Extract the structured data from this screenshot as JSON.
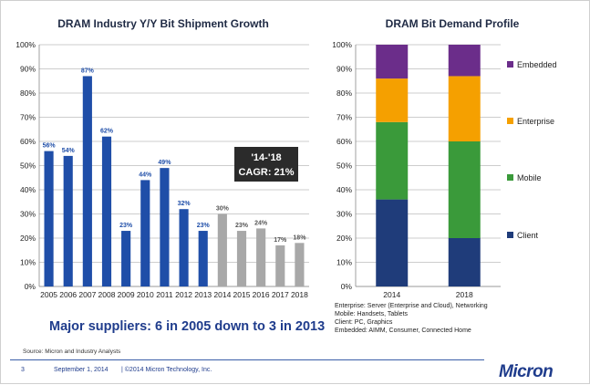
{
  "colors": {
    "blue_bar": "#1f4ea8",
    "gray_bar": "#a8a8a8",
    "client": "#1f3c7a",
    "mobile": "#3a9a3a",
    "enterprise": "#f5a000",
    "embedded": "#6b2d8a",
    "cagr_box": "#2b2b2b"
  },
  "chart_data": [
    {
      "type": "bar",
      "title": "DRAM Industry Y/Y Bit Shipment Growth",
      "categories": [
        "2005",
        "2006",
        "2007",
        "2008",
        "2009",
        "2010",
        "2011",
        "2012",
        "2013",
        "2014",
        "2015",
        "2016",
        "2017",
        "2018"
      ],
      "values": [
        56,
        54,
        87,
        62,
        23,
        44,
        49,
        32,
        23,
        30,
        23,
        24,
        17,
        18
      ],
      "data_labels": [
        "56%",
        "54%",
        "87%",
        "62%",
        "23%",
        "44%",
        "49%",
        "32%",
        "23%",
        "30%",
        "23%",
        "24%",
        "17%",
        "18%"
      ],
      "forecast_from_index": 9,
      "ylim": [
        0,
        100
      ],
      "yticks": [
        "0%",
        "10%",
        "20%",
        "30%",
        "40%",
        "50%",
        "60%",
        "70%",
        "80%",
        "90%",
        "100%"
      ],
      "annotation": {
        "line1": "'14-'18",
        "line2": "CAGR: 21%"
      }
    },
    {
      "type": "bar",
      "stacked": true,
      "title": "DRAM Bit Demand Profile",
      "categories": [
        "2014",
        "2018"
      ],
      "ylim": [
        0,
        100
      ],
      "yticks": [
        "0%",
        "10%",
        "20%",
        "30%",
        "40%",
        "50%",
        "60%",
        "70%",
        "80%",
        "90%",
        "100%"
      ],
      "series": [
        {
          "name": "Client",
          "values": [
            36,
            20
          ]
        },
        {
          "name": "Mobile",
          "values": [
            32,
            40
          ]
        },
        {
          "name": "Enterprise",
          "values": [
            18,
            27
          ]
        },
        {
          "name": "Embedded",
          "values": [
            14,
            13
          ]
        }
      ],
      "legend_order": [
        "Embedded",
        "Enterprise",
        "Mobile",
        "Client"
      ],
      "notes": [
        "Enterprise: Server (Enterprise and Cloud), Networking",
        "Mobile: Handsets, Tablets",
        "Client: PC, Graphics",
        "Embedded: AIMM, Consumer, Connected Home"
      ]
    }
  ],
  "headline": "Major suppliers: 6 in 2005 down to 3 in 2013",
  "source": "Source: Micron and Industry Analysts",
  "footer": {
    "page": "3",
    "date": "September 1, 2014",
    "copyright": "|     ©2014 Micron Technology, Inc.",
    "logo": "Micron"
  }
}
